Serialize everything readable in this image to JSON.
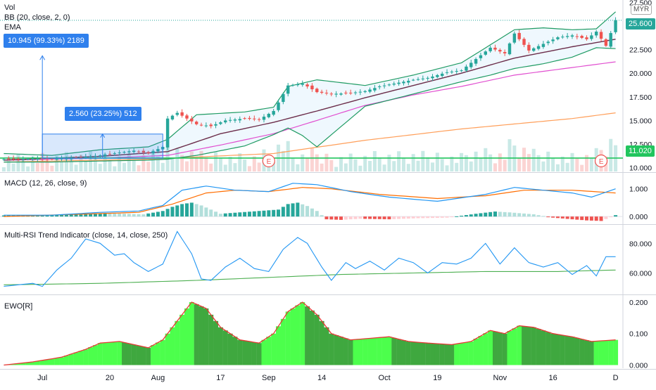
{
  "chart_data": [
    {
      "type": "candlestick",
      "pane": "price",
      "labels": [
        "Vol",
        "BB (20, close, 2, 0)",
        "EMA"
      ],
      "currency": "MYR",
      "y_ticks": [
        "27.500",
        "25.000",
        "22.500",
        "20.000",
        "17.500",
        "15.000",
        "12.500",
        "10.000"
      ],
      "ylim": [
        9.6,
        27.6
      ],
      "last_price": "25.600",
      "support_level_label": "11.020",
      "support_level": 11.02,
      "close_series_start": 10.9,
      "close_series_points": [
        [
          0,
          10.9
        ],
        [
          6,
          10.95
        ],
        [
          10,
          10.9
        ],
        [
          13,
          11.0
        ],
        [
          16,
          11.1
        ],
        [
          20,
          11.3
        ],
        [
          24,
          11.6
        ],
        [
          27,
          11.8
        ],
        [
          30,
          11.5
        ],
        [
          33,
          12.2
        ],
        [
          34,
          15.2
        ],
        [
          36,
          15.8
        ],
        [
          40,
          14.6
        ],
        [
          43,
          14.4
        ],
        [
          46,
          15.0
        ],
        [
          50,
          15.2
        ],
        [
          53,
          15.1
        ],
        [
          56,
          16.0
        ],
        [
          59,
          18.7
        ],
        [
          62,
          18.9
        ],
        [
          65,
          18.0
        ],
        [
          68,
          17.8
        ],
        [
          72,
          17.9
        ],
        [
          75,
          18.1
        ],
        [
          78,
          18.6
        ],
        [
          82,
          19.0
        ],
        [
          85,
          19.3
        ],
        [
          88,
          19.5
        ],
        [
          92,
          20.1
        ],
        [
          95,
          20.3
        ],
        [
          98,
          21.5
        ],
        [
          101,
          22.7
        ],
        [
          104,
          22.1
        ],
        [
          106,
          24.2
        ],
        [
          109,
          22.4
        ],
        [
          112,
          23.1
        ],
        [
          115,
          23.8
        ],
        [
          118,
          24.0
        ],
        [
          121,
          23.6
        ],
        [
          123,
          24.4
        ],
        [
          125,
          22.9
        ],
        [
          127,
          25.6
        ]
      ],
      "bb_upper_points": [
        [
          0,
          11.5
        ],
        [
          10,
          11.3
        ],
        [
          20,
          11.9
        ],
        [
          30,
          12.2
        ],
        [
          34,
          13.0
        ],
        [
          40,
          15.6
        ],
        [
          50,
          15.9
        ],
        [
          56,
          16.4
        ],
        [
          59,
          18.6
        ],
        [
          65,
          19.3
        ],
        [
          75,
          18.7
        ],
        [
          85,
          19.8
        ],
        [
          95,
          21.1
        ],
        [
          101,
          23.0
        ],
        [
          106,
          24.6
        ],
        [
          112,
          24.8
        ],
        [
          118,
          24.6
        ],
        [
          123,
          24.7
        ],
        [
          127,
          26.5
        ]
      ],
      "bb_lower_points": [
        [
          0,
          10.6
        ],
        [
          10,
          10.6
        ],
        [
          20,
          10.7
        ],
        [
          30,
          10.8
        ],
        [
          34,
          10.9
        ],
        [
          40,
          11.3
        ],
        [
          50,
          12.3
        ],
        [
          56,
          13.5
        ],
        [
          59,
          14.2
        ],
        [
          62,
          13.4
        ],
        [
          65,
          12.2
        ],
        [
          75,
          16.5
        ],
        [
          85,
          17.8
        ],
        [
          95,
          19.1
        ],
        [
          101,
          19.8
        ],
        [
          106,
          20.5
        ],
        [
          112,
          21.0
        ],
        [
          118,
          21.7
        ],
        [
          123,
          22.7
        ],
        [
          127,
          22.6
        ]
      ],
      "ma_dark_points": [
        [
          0,
          10.8
        ],
        [
          20,
          11.2
        ],
        [
          34,
          11.7
        ],
        [
          45,
          13.6
        ],
        [
          56,
          14.8
        ],
        [
          65,
          16.0
        ],
        [
          75,
          17.4
        ],
        [
          85,
          18.7
        ],
        [
          95,
          20.0
        ],
        [
          106,
          21.6
        ],
        [
          118,
          22.8
        ],
        [
          127,
          23.6
        ]
      ],
      "ema_pink_points": [
        [
          0,
          10.8
        ],
        [
          20,
          11.0
        ],
        [
          34,
          11.3
        ],
        [
          45,
          12.4
        ],
        [
          56,
          13.6
        ],
        [
          65,
          15.0
        ],
        [
          75,
          16.6
        ],
        [
          85,
          17.7
        ],
        [
          95,
          18.6
        ],
        [
          106,
          19.8
        ],
        [
          118,
          20.6
        ],
        [
          127,
          21.2
        ]
      ],
      "ema_orange_points": [
        [
          0,
          10.6
        ],
        [
          30,
          10.9
        ],
        [
          56,
          11.5
        ],
        [
          75,
          12.9
        ],
        [
          95,
          14.1
        ],
        [
          118,
          15.2
        ],
        [
          127,
          15.8
        ]
      ],
      "earnings_markers": [
        55,
        124
      ],
      "earnings_label": "E",
      "measure_tools": [
        {
          "label": "10.945 (99.33%) 2189",
          "from_index": 8,
          "low": 10.9,
          "high": 21.85
        },
        {
          "label": "2.560 (23.25%) 512",
          "from_index": 8,
          "to_index": 33,
          "low": 11.0,
          "high": 13.56
        }
      ]
    },
    {
      "type": "line",
      "pane": "macd",
      "title": "MACD (12, 26, close, 9)",
      "y_ticks": [
        "1.000",
        "0.000"
      ],
      "ylim": [
        -0.25,
        1.55
      ],
      "macd_line": [
        [
          0,
          0.05
        ],
        [
          10,
          0.05
        ],
        [
          20,
          0.15
        ],
        [
          28,
          0.2
        ],
        [
          33,
          0.4
        ],
        [
          37,
          0.95
        ],
        [
          42,
          1.1
        ],
        [
          48,
          0.95
        ],
        [
          55,
          0.9
        ],
        [
          60,
          1.2
        ],
        [
          65,
          1.15
        ],
        [
          72,
          0.9
        ],
        [
          80,
          0.7
        ],
        [
          90,
          0.55
        ],
        [
          100,
          0.8
        ],
        [
          106,
          1.05
        ],
        [
          112,
          0.95
        ],
        [
          118,
          0.85
        ],
        [
          122,
          0.7
        ],
        [
          127,
          1.0
        ]
      ],
      "signal_line": [
        [
          0,
          0.0
        ],
        [
          15,
          0.08
        ],
        [
          28,
          0.15
        ],
        [
          35,
          0.45
        ],
        [
          42,
          0.85
        ],
        [
          48,
          0.95
        ],
        [
          55,
          0.9
        ],
        [
          62,
          1.05
        ],
        [
          68,
          1.0
        ],
        [
          78,
          0.8
        ],
        [
          90,
          0.65
        ],
        [
          100,
          0.75
        ],
        [
          108,
          0.95
        ],
        [
          118,
          0.95
        ],
        [
          127,
          0.85
        ]
      ],
      "histogram": [
        [
          5,
          0.04
        ],
        [
          9,
          0.05
        ],
        [
          13,
          0.07
        ],
        [
          17,
          0.1
        ],
        [
          21,
          0.12
        ],
        [
          25,
          0.1
        ],
        [
          29,
          0.08
        ],
        [
          33,
          0.2
        ],
        [
          35,
          0.35
        ],
        [
          37,
          0.45
        ],
        [
          39,
          0.5
        ],
        [
          41,
          0.4
        ],
        [
          43,
          0.25
        ],
        [
          45,
          0.1
        ],
        [
          57,
          0.25
        ],
        [
          59,
          0.45
        ],
        [
          61,
          0.5
        ],
        [
          63,
          0.38
        ],
        [
          65,
          0.2
        ],
        [
          67,
          -0.1
        ],
        [
          70,
          -0.12
        ],
        [
          74,
          -0.08
        ],
        [
          80,
          -0.1
        ],
        [
          86,
          -0.06
        ],
        [
          92,
          -0.04
        ],
        [
          98,
          0.1
        ],
        [
          102,
          0.18
        ],
        [
          105,
          0.15
        ],
        [
          110,
          0.08
        ],
        [
          114,
          -0.04
        ],
        [
          118,
          -0.1
        ],
        [
          121,
          -0.14
        ],
        [
          124,
          -0.16
        ],
        [
          127,
          0.05
        ]
      ]
    },
    {
      "type": "line",
      "pane": "rsi",
      "title": "Multi-RSI Trend Indicator (close, 14, close, 250)",
      "y_ticks": [
        "80.000",
        "60.000"
      ],
      "ylim": [
        46,
        92
      ],
      "rsi_line": [
        [
          0,
          51
        ],
        [
          3,
          52
        ],
        [
          6,
          53
        ],
        [
          8,
          51
        ],
        [
          11,
          62
        ],
        [
          14,
          70
        ],
        [
          17,
          83
        ],
        [
          20,
          80
        ],
        [
          23,
          72
        ],
        [
          25,
          73
        ],
        [
          27,
          67
        ],
        [
          30,
          61
        ],
        [
          33,
          66
        ],
        [
          36,
          88
        ],
        [
          39,
          73
        ],
        [
          41,
          56
        ],
        [
          43,
          55
        ],
        [
          46,
          64
        ],
        [
          49,
          70
        ],
        [
          52,
          63
        ],
        [
          55,
          61
        ],
        [
          58,
          76
        ],
        [
          61,
          84
        ],
        [
          63,
          80
        ],
        [
          66,
          64
        ],
        [
          68,
          55
        ],
        [
          71,
          67
        ],
        [
          73,
          63
        ],
        [
          76,
          68
        ],
        [
          79,
          62
        ],
        [
          82,
          70
        ],
        [
          85,
          67
        ],
        [
          88,
          60
        ],
        [
          91,
          67
        ],
        [
          94,
          66
        ],
        [
          97,
          70
        ],
        [
          100,
          80
        ],
        [
          103,
          66
        ],
        [
          106,
          77
        ],
        [
          109,
          67
        ],
        [
          112,
          64
        ],
        [
          115,
          67
        ],
        [
          118,
          59
        ],
        [
          121,
          65
        ],
        [
          123,
          58
        ],
        [
          125,
          71
        ],
        [
          127,
          71
        ]
      ],
      "trend_line": [
        [
          0,
          52
        ],
        [
          20,
          53
        ],
        [
          40,
          55
        ],
        [
          55,
          57
        ],
        [
          70,
          59
        ],
        [
          85,
          60
        ],
        [
          100,
          61
        ],
        [
          115,
          61
        ],
        [
          127,
          62
        ]
      ]
    },
    {
      "type": "area",
      "pane": "ewo",
      "title": "EWO[R]",
      "y_ticks": [
        "0.200",
        "0.100",
        "0.000"
      ],
      "ylim": [
        -0.01,
        0.22
      ],
      "ewo": [
        [
          0,
          0.0
        ],
        [
          6,
          0.01
        ],
        [
          12,
          0.025
        ],
        [
          17,
          0.05
        ],
        [
          20,
          0.07
        ],
        [
          24,
          0.075
        ],
        [
          27,
          0.065
        ],
        [
          30,
          0.055
        ],
        [
          33,
          0.08
        ],
        [
          36,
          0.14
        ],
        [
          39,
          0.2
        ],
        [
          42,
          0.18
        ],
        [
          45,
          0.12
        ],
        [
          49,
          0.08
        ],
        [
          53,
          0.07
        ],
        [
          56,
          0.1
        ],
        [
          59,
          0.17
        ],
        [
          62,
          0.2
        ],
        [
          65,
          0.16
        ],
        [
          68,
          0.1
        ],
        [
          72,
          0.08
        ],
        [
          76,
          0.085
        ],
        [
          80,
          0.09
        ],
        [
          84,
          0.075
        ],
        [
          88,
          0.07
        ],
        [
          93,
          0.065
        ],
        [
          97,
          0.075
        ],
        [
          101,
          0.11
        ],
        [
          104,
          0.1
        ],
        [
          107,
          0.125
        ],
        [
          110,
          0.12
        ],
        [
          114,
          0.1
        ],
        [
          118,
          0.09
        ],
        [
          122,
          0.075
        ],
        [
          127,
          0.08
        ]
      ]
    }
  ],
  "x_axis": {
    "labels": [
      "Jul",
      "20",
      "Aug",
      "17",
      "Sep",
      "14",
      "Oct",
      "19",
      "Nov",
      "16",
      "D"
    ],
    "label_indices": [
      8,
      22,
      32,
      45,
      55,
      66,
      79,
      90,
      103,
      114,
      127
    ]
  }
}
